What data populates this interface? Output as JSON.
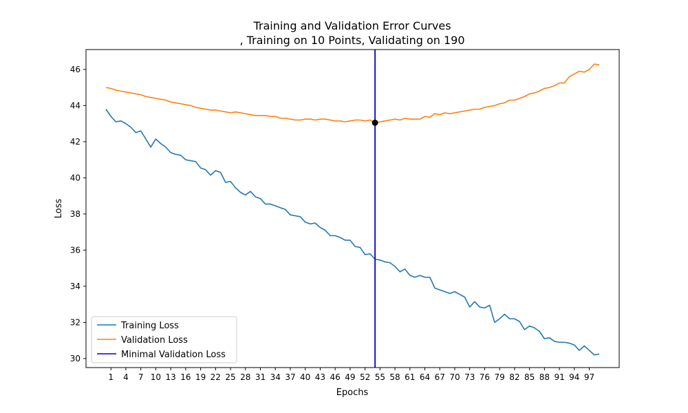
{
  "chart_data": {
    "type": "line",
    "title_line1": "Training and Validation Error Curves",
    "title_line2": ", Training on 10 Points, Validating on 190",
    "xlabel": "Epochs",
    "ylabel": "Loss",
    "xlim": [
      -4,
      103
    ],
    "ylim": [
      29.5,
      47.1
    ],
    "xticks": [
      1,
      4,
      7,
      10,
      13,
      16,
      19,
      22,
      25,
      28,
      31,
      34,
      37,
      40,
      43,
      46,
      49,
      52,
      55,
      58,
      61,
      64,
      67,
      70,
      73,
      76,
      79,
      82,
      85,
      88,
      91,
      94,
      97
    ],
    "yticks": [
      30,
      32,
      34,
      36,
      38,
      40,
      42,
      44,
      46
    ],
    "legend_position": "lower-left",
    "series": [
      {
        "name": "Training Loss",
        "color": "#1f77b4",
        "x_start": 0,
        "values": [
          43.8,
          43.4,
          43.1,
          43.15,
          43.0,
          42.8,
          42.5,
          42.6,
          42.15,
          41.7,
          42.15,
          41.9,
          41.7,
          41.4,
          41.3,
          41.25,
          41.0,
          40.95,
          40.9,
          40.55,
          40.45,
          40.15,
          40.4,
          40.3,
          39.75,
          39.8,
          39.45,
          39.2,
          39.05,
          39.25,
          38.95,
          38.85,
          38.55,
          38.55,
          38.45,
          38.35,
          38.25,
          37.95,
          37.9,
          37.85,
          37.55,
          37.45,
          37.5,
          37.25,
          37.1,
          36.8,
          36.8,
          36.7,
          36.55,
          36.55,
          36.2,
          36.15,
          35.75,
          35.8,
          35.5,
          35.45,
          35.35,
          35.3,
          35.1,
          34.8,
          34.95,
          34.6,
          34.5,
          34.6,
          34.5,
          34.5,
          33.9,
          33.8,
          33.7,
          33.6,
          33.7,
          33.55,
          33.4,
          32.85,
          33.15,
          32.85,
          32.8,
          32.95,
          32.0,
          32.2,
          32.45,
          32.2,
          32.2,
          32.05,
          31.6,
          31.8,
          31.7,
          31.5,
          31.1,
          31.15,
          30.95,
          30.9,
          30.9,
          30.85,
          30.75,
          30.45,
          30.7,
          30.45,
          30.2,
          30.25
        ]
      },
      {
        "name": "Validation Loss",
        "color": "#ff7f0e",
        "x_start": 0,
        "values": [
          45.0,
          44.95,
          44.85,
          44.8,
          44.75,
          44.7,
          44.65,
          44.6,
          44.5,
          44.45,
          44.4,
          44.35,
          44.3,
          44.2,
          44.15,
          44.1,
          44.05,
          44.0,
          43.9,
          43.85,
          43.8,
          43.75,
          43.75,
          43.7,
          43.65,
          43.6,
          43.65,
          43.6,
          43.55,
          43.5,
          43.45,
          43.45,
          43.45,
          43.4,
          43.4,
          43.3,
          43.3,
          43.25,
          43.2,
          43.2,
          43.25,
          43.25,
          43.2,
          43.25,
          43.25,
          43.2,
          43.15,
          43.15,
          43.1,
          43.15,
          43.2,
          43.2,
          43.15,
          43.2,
          43.05,
          43.1,
          43.15,
          43.2,
          43.25,
          43.2,
          43.3,
          43.25,
          43.25,
          43.25,
          43.4,
          43.35,
          43.55,
          43.5,
          43.6,
          43.55,
          43.6,
          43.65,
          43.7,
          43.75,
          43.8,
          43.8,
          43.9,
          43.95,
          44.0,
          44.1,
          44.15,
          44.3,
          44.3,
          44.4,
          44.5,
          44.65,
          44.7,
          44.8,
          44.95,
          45.0,
          45.1,
          45.25,
          45.25,
          45.6,
          45.75,
          45.9,
          45.85,
          46.0,
          46.3,
          46.25
        ]
      }
    ],
    "min_validation": {
      "name": "Minimal Validation Loss",
      "color": "#0000cd",
      "x": 54,
      "y": 43.05
    }
  }
}
